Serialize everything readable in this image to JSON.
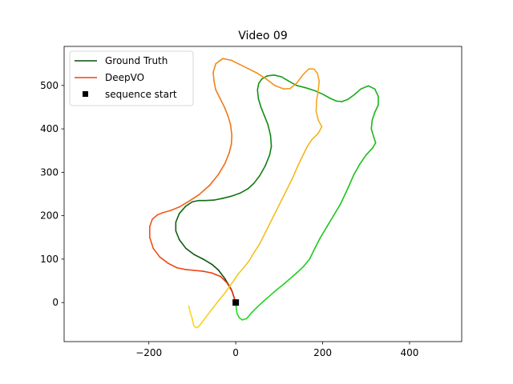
{
  "chart_data": {
    "type": "line",
    "title": "Video 09",
    "xlabel": "",
    "ylabel": "",
    "xlim": [
      -395,
      520
    ],
    "ylim": [
      -90,
      590
    ],
    "xticks": [
      -200,
      0,
      200,
      400
    ],
    "yticks": [
      0,
      100,
      200,
      300,
      400,
      500
    ],
    "grid": false,
    "legend_position": "top-left",
    "series": [
      {
        "name": "Ground Truth",
        "legend_color": "#0d4d0d",
        "gradient": [
          "#0d4d0d",
          "#18a818",
          "#22dd22"
        ],
        "x": [
          0,
          -10,
          -25,
          -40,
          -55,
          -75,
          -95,
          -115,
          -130,
          -138,
          -138,
          -130,
          -115,
          -100,
          -85,
          -70,
          -50,
          -30,
          -10,
          10,
          28,
          42,
          55,
          68,
          78,
          82,
          80,
          74,
          66,
          58,
          52,
          50,
          53,
          60,
          72,
          88,
          105,
          122,
          140,
          160,
          182,
          200,
          218,
          232,
          245,
          258,
          272,
          288,
          305,
          320,
          328,
          328,
          320,
          314,
          312,
          318,
          322,
          315,
          300,
          285,
          272,
          262,
          252,
          240,
          225,
          210,
          195,
          182,
          170,
          155,
          140,
          125,
          110,
          95,
          80,
          65,
          50,
          35,
          25,
          15,
          8,
          3,
          1,
          0
        ],
        "y": [
          0,
          30,
          55,
          75,
          88,
          100,
          110,
          125,
          145,
          165,
          185,
          205,
          222,
          232,
          235,
          235,
          236,
          240,
          245,
          252,
          262,
          275,
          292,
          315,
          340,
          360,
          385,
          410,
          430,
          450,
          470,
          490,
          505,
          515,
          522,
          524,
          520,
          510,
          500,
          495,
          488,
          480,
          470,
          464,
          463,
          468,
          478,
          492,
          499,
          492,
          475,
          455,
          438,
          420,
          400,
          380,
          368,
          356,
          340,
          318,
          295,
          272,
          250,
          225,
          200,
          175,
          150,
          125,
          100,
          82,
          68,
          55,
          42,
          30,
          17,
          4,
          -10,
          -25,
          -37,
          -40,
          -35,
          -25,
          -12,
          0
        ]
      },
      {
        "name": "DeepVO",
        "legend_color": "#ee4411",
        "gradient": [
          "#ee3311",
          "#f07718",
          "#f5b020",
          "#f8d820"
        ],
        "x": [
          0,
          -8,
          -20,
          -35,
          -55,
          -75,
          -95,
          -115,
          -135,
          -155,
          -175,
          -190,
          -198,
          -198,
          -192,
          -180,
          -168,
          -150,
          -130,
          -110,
          -85,
          -60,
          -40,
          -25,
          -15,
          -10,
          -9,
          -12,
          -18,
          -26,
          -36,
          -46,
          -50,
          -52,
          -46,
          -30,
          -10,
          10,
          30,
          50,
          70,
          90,
          110,
          125,
          140,
          155,
          168,
          180,
          188,
          192,
          190,
          186,
          185,
          190,
          198,
          190,
          175,
          165,
          155,
          143,
          130,
          115,
          100,
          85,
          70,
          55,
          42,
          30,
          18,
          5,
          -5,
          -15,
          -25,
          -38,
          -52,
          -66,
          -78,
          -86,
          -92,
          -97,
          -100,
          -105,
          -108
        ],
        "y": [
          0,
          25,
          45,
          60,
          68,
          72,
          74,
          76,
          80,
          90,
          105,
          125,
          150,
          175,
          192,
          202,
          207,
          212,
          220,
          232,
          248,
          270,
          295,
          320,
          345,
          365,
          385,
          410,
          430,
          450,
          470,
          490,
          510,
          530,
          550,
          562,
          558,
          548,
          538,
          528,
          515,
          500,
          492,
          493,
          505,
          525,
          538,
          538,
          528,
          510,
          490,
          465,
          440,
          420,
          405,
          390,
          375,
          360,
          340,
          315,
          285,
          255,
          225,
          195,
          165,
          135,
          115,
          95,
          80,
          65,
          50,
          36,
          22,
          6,
          -12,
          -30,
          -46,
          -56,
          -58,
          -52,
          -38,
          -22,
          -8
        ]
      }
    ],
    "markers": [
      {
        "name": "sequence start",
        "x": 0,
        "y": 0,
        "color": "#000000",
        "shape": "square"
      }
    ]
  }
}
